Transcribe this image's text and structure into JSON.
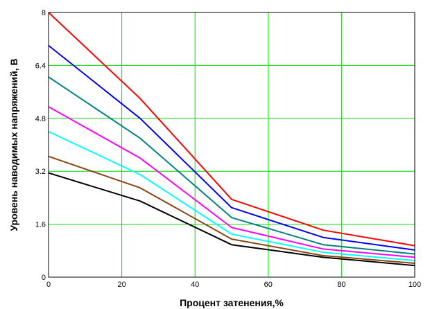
{
  "chart_data": {
    "type": "line",
    "xlabel": "Процент затенения,%",
    "ylabel": "Уровень наводимых напряжений, В",
    "xlim": [
      0,
      100
    ],
    "ylim": [
      0,
      8
    ],
    "x_ticks": [
      0,
      20,
      40,
      60,
      80,
      100
    ],
    "y_ticks": [
      0,
      1.6,
      3.2,
      4.8,
      6.4,
      8
    ],
    "x_tick_labels": [
      "0",
      "20",
      "40",
      "60",
      "80",
      "100"
    ],
    "y_tick_labels": [
      "0",
      "1.6",
      "3.2",
      "4.8",
      "6.4",
      "8"
    ],
    "grid": true,
    "grid_color": "#00dd00",
    "x": [
      0,
      25,
      50,
      75,
      100
    ],
    "series": [
      {
        "color": "#ff0000",
        "values": [
          8.0,
          5.4,
          2.35,
          1.42,
          0.95
        ]
      },
      {
        "color": "#0000ff",
        "values": [
          7.0,
          4.8,
          2.1,
          1.2,
          0.82
        ]
      },
      {
        "color": "#008080",
        "values": [
          6.05,
          4.2,
          1.8,
          0.98,
          0.7
        ]
      },
      {
        "color": "#ff00ff",
        "values": [
          5.15,
          3.6,
          1.5,
          0.85,
          0.6
        ]
      },
      {
        "color": "#00ffff",
        "values": [
          4.4,
          3.1,
          1.3,
          0.75,
          0.5
        ]
      },
      {
        "color": "#8b4513",
        "values": [
          3.65,
          2.7,
          1.15,
          0.65,
          0.42
        ]
      },
      {
        "color": "#000000",
        "values": [
          3.15,
          2.3,
          0.98,
          0.6,
          0.35
        ]
      }
    ]
  }
}
